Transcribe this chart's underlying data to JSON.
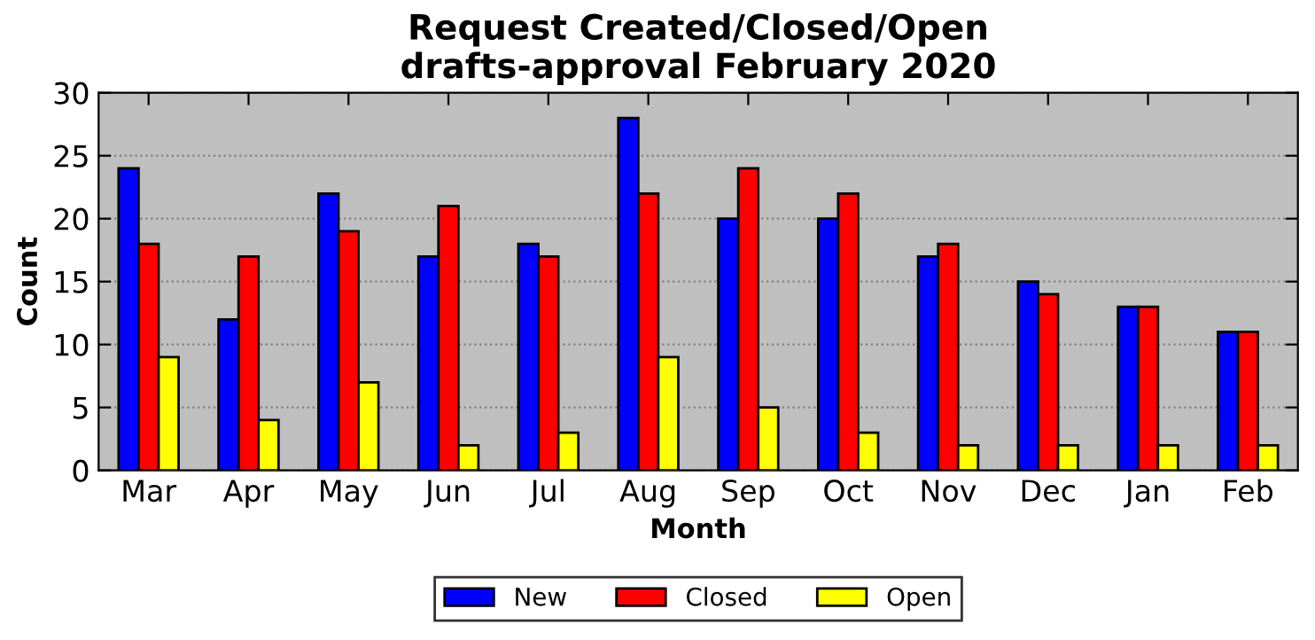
{
  "chart_data": {
    "type": "bar",
    "title": "Request Created/Closed/Open\ndrafts-approval February 2020",
    "xlabel": "Month",
    "ylabel": "Count",
    "categories": [
      "Mar",
      "Apr",
      "May",
      "Jun",
      "Jul",
      "Aug",
      "Sep",
      "Oct",
      "Nov",
      "Dec",
      "Jan",
      "Feb"
    ],
    "series": [
      {
        "name": "New",
        "color": "#0000ff",
        "values": [
          24,
          12,
          22,
          17,
          18,
          28,
          20,
          20,
          17,
          15,
          13,
          11
        ]
      },
      {
        "name": "Closed",
        "color": "#ff0000",
        "values": [
          18,
          17,
          19,
          21,
          17,
          22,
          24,
          22,
          18,
          14,
          13,
          11
        ]
      },
      {
        "name": "Open",
        "color": "#ffff00",
        "values": [
          9,
          4,
          7,
          2,
          3,
          9,
          5,
          3,
          2,
          2,
          2,
          2
        ]
      }
    ],
    "ylim": [
      0,
      30
    ],
    "yticks": [
      0,
      5,
      10,
      15,
      20,
      25,
      30
    ],
    "grid": "y",
    "legend": "bottom"
  }
}
